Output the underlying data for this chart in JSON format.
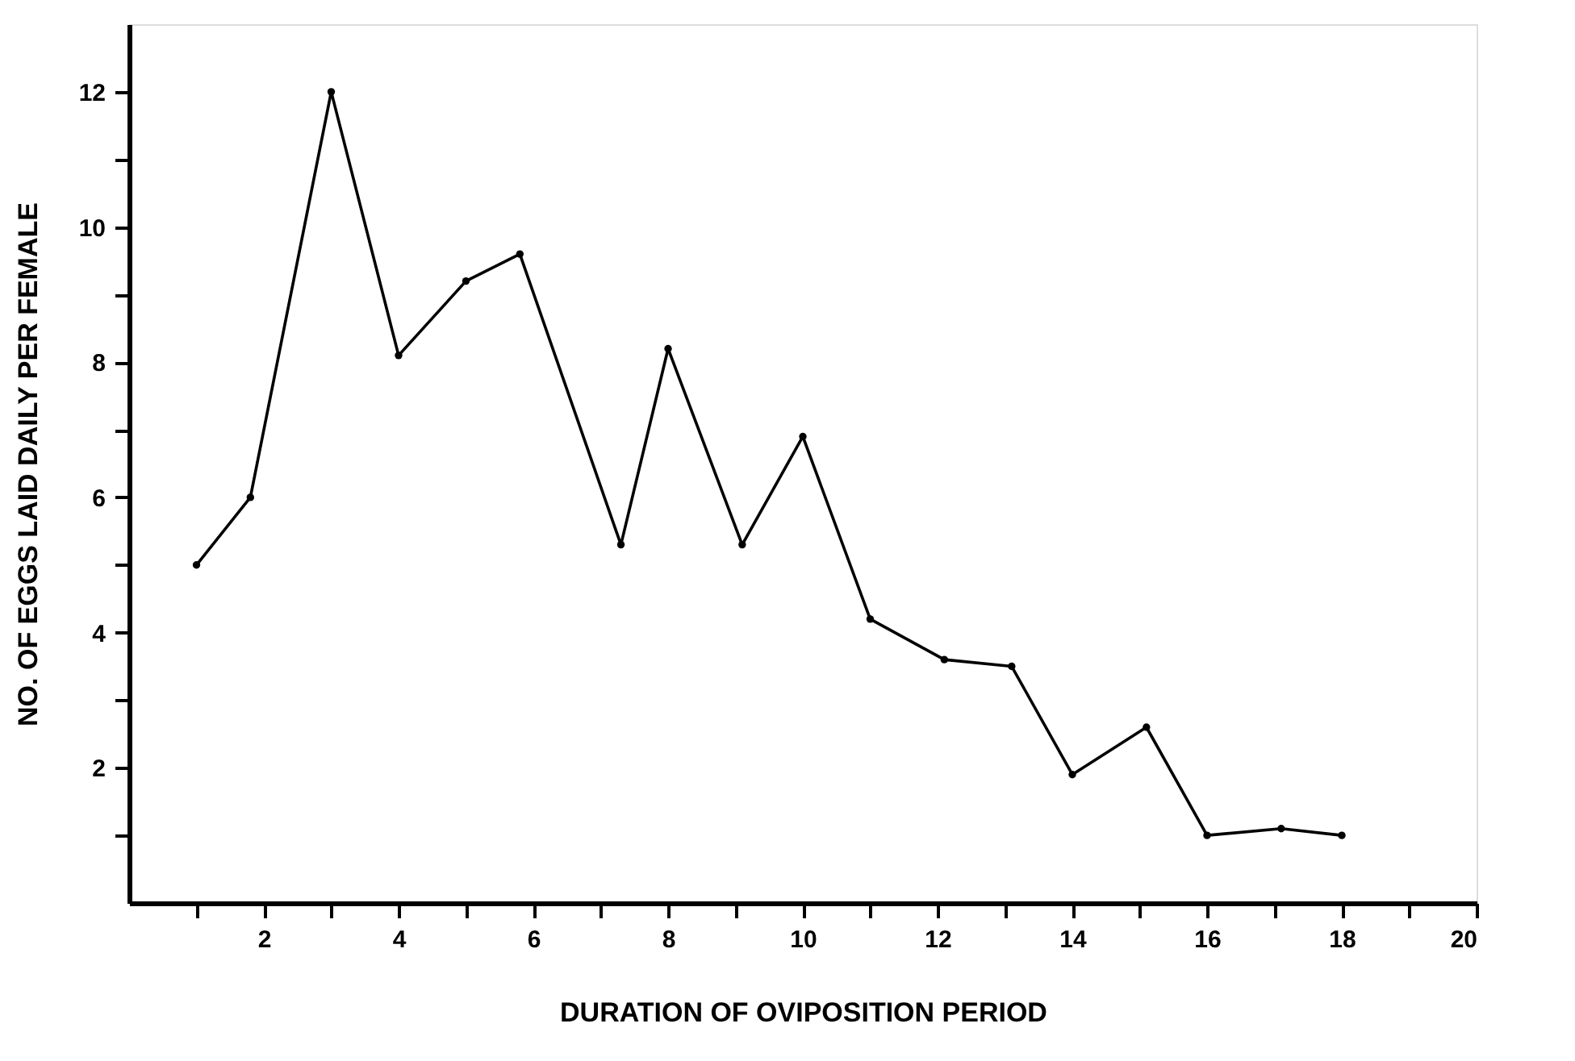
{
  "chart_data": {
    "type": "line",
    "xlabel": "DURATION OF OVIPOSITION PERIOD",
    "ylabel": "NO. OF EGGS LAID DAILY PER FEMALE",
    "x": [
      1,
      1.8,
      3,
      4,
      5,
      5.8,
      7.3,
      8,
      9.1,
      10,
      11,
      12.1,
      13.1,
      14,
      15.1,
      16,
      17.1,
      18
    ],
    "series": [
      {
        "color": "#000000",
        "values": [
          5.0,
          6.0,
          12.0,
          8.1,
          9.2,
          9.6,
          5.3,
          8.2,
          5.3,
          6.9,
          4.2,
          3.6,
          3.5,
          1.9,
          2.6,
          1.0,
          1.1,
          1.0
        ]
      }
    ],
    "xlim": [
      0,
      20
    ],
    "ylim": [
      0,
      13
    ],
    "xticks": [
      {
        "value": 1,
        "label": null
      },
      2,
      {
        "value": 3,
        "label": null
      },
      4,
      {
        "value": 5,
        "label": null
      },
      6,
      {
        "value": 7,
        "label": null
      },
      8,
      {
        "value": 9,
        "label": null
      },
      10,
      {
        "value": 11,
        "label": null
      },
      12,
      {
        "value": 13,
        "label": null
      },
      14,
      {
        "value": 15,
        "label": null
      },
      16,
      {
        "value": 17,
        "label": null
      },
      18,
      {
        "value": 19,
        "label": null
      },
      20
    ],
    "yticks": [
      {
        "value": 1,
        "label": null
      },
      2,
      {
        "value": 3,
        "label": null
      },
      4,
      {
        "value": 5,
        "label": null
      },
      6,
      {
        "value": 7,
        "label": null
      },
      8,
      {
        "value": 9,
        "label": null
      },
      10,
      {
        "value": 11,
        "label": null
      },
      12
    ],
    "grid": false,
    "marker": "circle",
    "line_style": "solid"
  }
}
